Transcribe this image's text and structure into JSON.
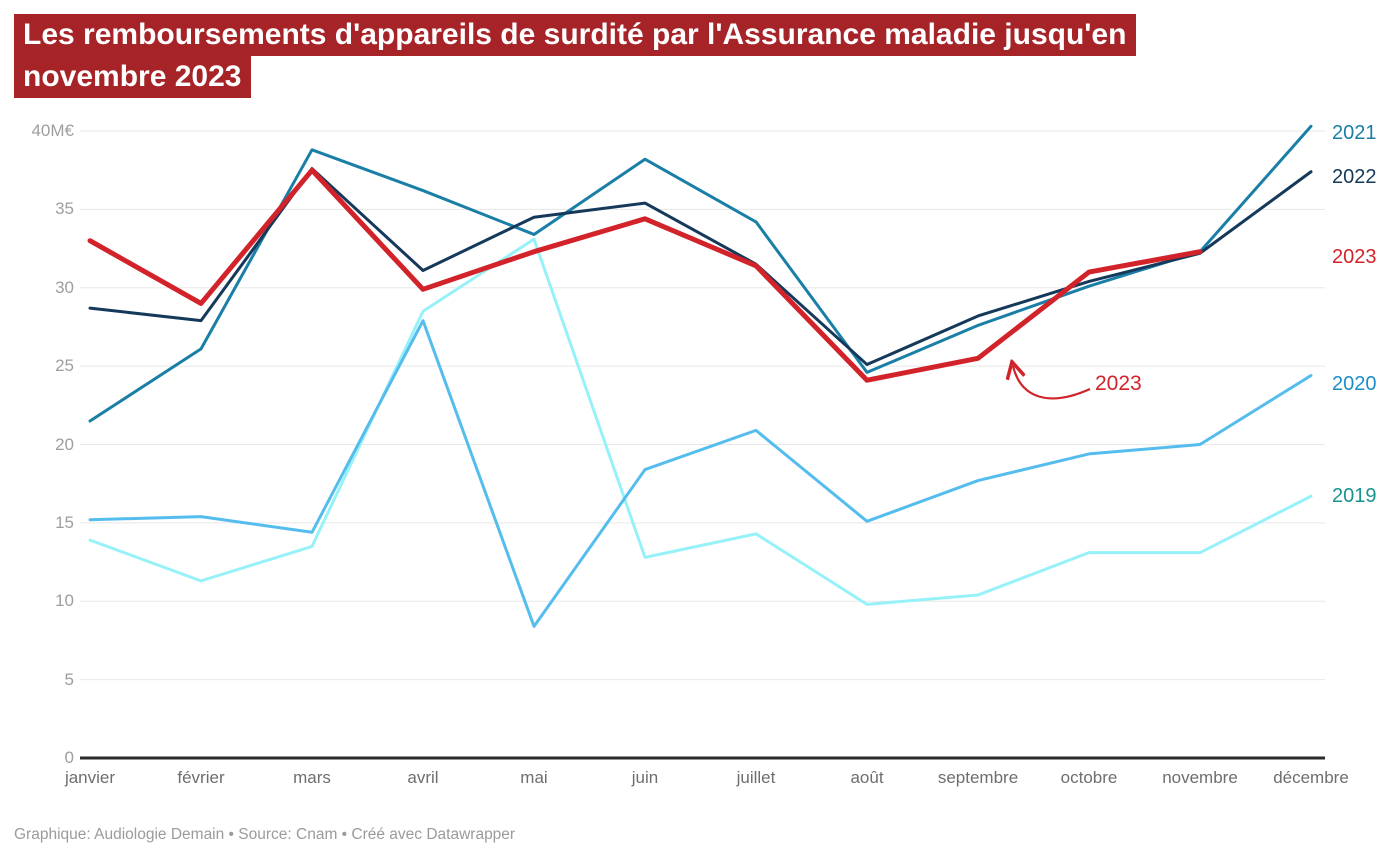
{
  "header": {
    "title_line1": "Les remboursements d'appareils de surdité par l'Assurance maladie jusqu'en",
    "title_line2": "novembre 2023",
    "bg_color": "#a62328",
    "text_color": "#ffffff"
  },
  "footer": {
    "text": "Graphique: Audiologie Demain • Source: Cnam • Créé avec Datawrapper"
  },
  "chart_data": {
    "type": "line",
    "unit": "M€",
    "title": "Les remboursements d'appareils de surdité par l'Assurance maladie jusqu'en novembre 2023",
    "categories": [
      "janvier",
      "février",
      "mars",
      "avril",
      "mai",
      "juin",
      "juillet",
      "août",
      "septembre",
      "octobre",
      "novembre",
      "décembre"
    ],
    "ylim": [
      0,
      40
    ],
    "yticks": [
      0,
      5,
      10,
      15,
      20,
      25,
      30,
      35,
      40
    ],
    "ytick_top_label": "40M€",
    "grid": true,
    "legend_position": "right-edge-labels",
    "series": [
      {
        "name": "2019",
        "color": "#97f1f8",
        "label_color": "#18948e",
        "line_width": 3,
        "label_dy": 0,
        "values": [
          13.9,
          11.3,
          13.5,
          28.5,
          33.1,
          12.8,
          14.3,
          9.8,
          10.4,
          13.1,
          13.1,
          16.7
        ]
      },
      {
        "name": "2020",
        "color": "#55bdee",
        "label_color": "#1e8fc4",
        "line_width": 3,
        "label_dy": 8,
        "values": [
          15.2,
          15.4,
          14.4,
          27.9,
          8.4,
          18.4,
          20.9,
          15.1,
          17.7,
          19.4,
          20.0,
          24.4
        ]
      },
      {
        "name": "2021",
        "color": "#1a7fa6",
        "label_color": "#1a7fa6",
        "line_width": 3,
        "label_dy": 7,
        "values": [
          21.5,
          26.1,
          38.8,
          36.2,
          33.4,
          38.2,
          34.2,
          24.6,
          27.6,
          30.1,
          32.3,
          40.3
        ]
      },
      {
        "name": "2022",
        "color": "#15395b",
        "label_color": "#15395b",
        "line_width": 3,
        "label_dy": 5,
        "values": [
          28.7,
          27.9,
          37.6,
          31.1,
          34.5,
          35.4,
          31.5,
          25.1,
          28.2,
          30.4,
          32.2,
          37.4
        ]
      },
      {
        "name": "2023",
        "color": "#d2232a",
        "label_color": "#d2232a",
        "line_width": 5,
        "label_dy": 5,
        "values": [
          33.0,
          29.0,
          37.5,
          29.9,
          32.3,
          34.4,
          31.4,
          24.1,
          25.5,
          31.0,
          32.3
        ]
      }
    ],
    "annotation": {
      "text": "2023",
      "color": "#d2232a"
    },
    "colors": {
      "grid": "#e8e8e8",
      "zero_axis": "#2b2b2b",
      "ytick_label": "#9e9e9e",
      "xtick_label": "#6e6e6e"
    }
  }
}
